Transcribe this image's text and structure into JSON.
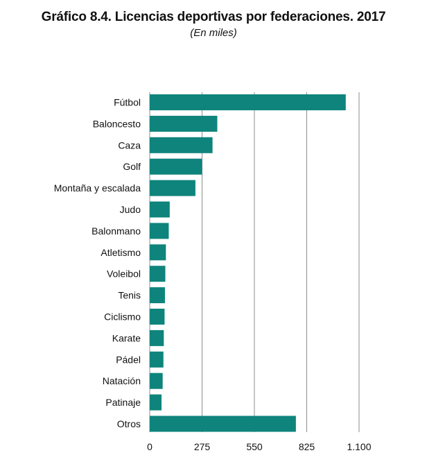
{
  "chart_data": {
    "type": "bar",
    "orientation": "horizontal",
    "title": "Gráfico 8.4. Licencias deportivas por federaciones. 2017",
    "subtitle": "(En miles)",
    "categories": [
      "Fútbol",
      "Baloncesto",
      "Caza",
      "Golf",
      "Montaña y escalada",
      "Judo",
      "Balonmano",
      "Atletismo",
      "Voleibol",
      "Tenis",
      "Ciclismo",
      "Karate",
      "Pádel",
      "Natación",
      "Patinaje",
      "Otros"
    ],
    "values": [
      1030,
      355,
      330,
      275,
      240,
      105,
      100,
      85,
      82,
      80,
      78,
      74,
      72,
      68,
      62,
      768
    ],
    "xlim": [
      0,
      1100
    ],
    "xticks": [
      0,
      275,
      550,
      825,
      1100
    ],
    "xtick_labels": [
      "0",
      "275",
      "550",
      "825",
      "1.100"
    ],
    "xgrid": true,
    "ygrid": false,
    "bar_color": "#0e847c",
    "grid_color": "#8c8c8c"
  }
}
